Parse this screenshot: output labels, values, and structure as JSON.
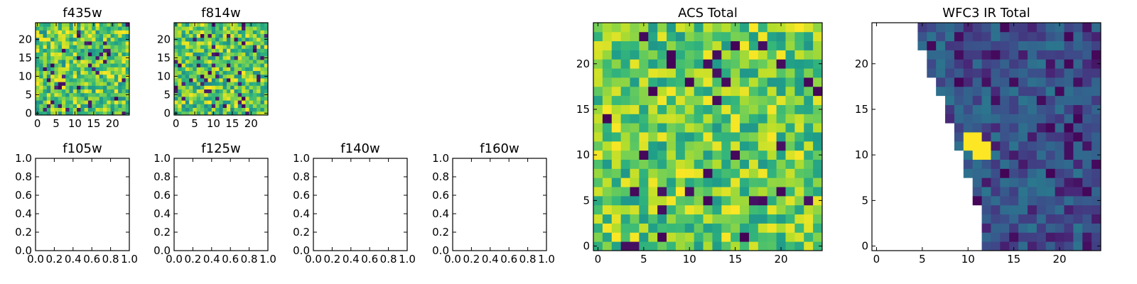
{
  "chart_data": [
    {
      "id": "f435w",
      "type": "heatmap",
      "title": "f435w",
      "xlim": [
        -0.5,
        24.5
      ],
      "ylim": [
        -0.5,
        24.5
      ],
      "xticks": [
        0,
        5,
        10,
        15,
        20
      ],
      "yticks": [
        0,
        5,
        10,
        15,
        20
      ],
      "xtick_labels": [
        "0",
        "5",
        "10",
        "15",
        "20"
      ],
      "ytick_labels": [
        "0",
        "5",
        "10",
        "15",
        "20"
      ],
      "colormap": "viridis",
      "grid": false,
      "rows": 25,
      "cols": 25,
      "fill": "random-dense",
      "seed": 11
    },
    {
      "id": "f814w",
      "type": "heatmap",
      "title": "f814w",
      "xlim": [
        -0.5,
        24.5
      ],
      "ylim": [
        -0.5,
        24.5
      ],
      "xticks": [
        0,
        5,
        10,
        15,
        20
      ],
      "yticks": [
        0,
        5,
        10,
        15,
        20
      ],
      "xtick_labels": [
        "0",
        "5",
        "10",
        "15",
        "20"
      ],
      "ytick_labels": [
        "0",
        "5",
        "10",
        "15",
        "20"
      ],
      "colormap": "viridis",
      "grid": false,
      "rows": 25,
      "cols": 25,
      "fill": "random-dense",
      "seed": 23
    },
    {
      "id": "f105w",
      "type": "heatmap",
      "title": "f105w",
      "xlim": [
        0,
        1
      ],
      "ylim": [
        0,
        1
      ],
      "xticks": [
        0,
        0.2,
        0.4,
        0.6,
        0.8,
        1.0
      ],
      "yticks": [
        0,
        0.2,
        0.4,
        0.6,
        0.8,
        1.0
      ],
      "xtick_labels": [
        "0.0",
        "0.2",
        "0.4",
        "0.6",
        "0.8",
        "1.0"
      ],
      "ytick_labels": [
        "0.0",
        "0.2",
        "0.4",
        "0.6",
        "0.8",
        "1.0"
      ],
      "empty": true
    },
    {
      "id": "f125w",
      "type": "heatmap",
      "title": "f125w",
      "xlim": [
        0,
        1
      ],
      "ylim": [
        0,
        1
      ],
      "xticks": [
        0,
        0.2,
        0.4,
        0.6,
        0.8,
        1.0
      ],
      "yticks": [
        0,
        0.2,
        0.4,
        0.6,
        0.8,
        1.0
      ],
      "xtick_labels": [
        "0.0",
        "0.2",
        "0.4",
        "0.6",
        "0.8",
        "1.0"
      ],
      "ytick_labels": [
        "0.0",
        "0.2",
        "0.4",
        "0.6",
        "0.8",
        "1.0"
      ],
      "empty": true
    },
    {
      "id": "f140w",
      "type": "heatmap",
      "title": "f140w",
      "xlim": [
        0,
        1
      ],
      "ylim": [
        0,
        1
      ],
      "xticks": [
        0,
        0.2,
        0.4,
        0.6,
        0.8,
        1.0
      ],
      "yticks": [
        0,
        0.2,
        0.4,
        0.6,
        0.8,
        1.0
      ],
      "xtick_labels": [
        "0.0",
        "0.2",
        "0.4",
        "0.6",
        "0.8",
        "1.0"
      ],
      "ytick_labels": [
        "0.0",
        "0.2",
        "0.4",
        "0.6",
        "0.8",
        "1.0"
      ],
      "empty": true
    },
    {
      "id": "f160w",
      "type": "heatmap",
      "title": "f160w",
      "xlim": [
        0,
        1
      ],
      "ylim": [
        0,
        1
      ],
      "xticks": [
        0,
        0.2,
        0.4,
        0.6,
        0.8,
        1.0
      ],
      "yticks": [
        0,
        0.2,
        0.4,
        0.6,
        0.8,
        1.0
      ],
      "xtick_labels": [
        "0.0",
        "0.2",
        "0.4",
        "0.6",
        "0.8",
        "1.0"
      ],
      "ytick_labels": [
        "0.0",
        "0.2",
        "0.4",
        "0.6",
        "0.8",
        "1.0"
      ],
      "empty": true
    },
    {
      "id": "acs-total",
      "type": "heatmap",
      "title": "ACS Total",
      "xlim": [
        -0.5,
        24.5
      ],
      "ylim": [
        -0.5,
        24.5
      ],
      "xticks": [
        0,
        5,
        10,
        15,
        20
      ],
      "yticks": [
        0,
        5,
        10,
        15,
        20
      ],
      "xtick_labels": [
        "0",
        "5",
        "10",
        "15",
        "20"
      ],
      "ytick_labels": [
        "0",
        "5",
        "10",
        "15",
        "20"
      ],
      "colormap": "viridis",
      "grid": false,
      "rows": 25,
      "cols": 25,
      "fill": "random-bright",
      "seed": 37
    },
    {
      "id": "wfc3-ir-total",
      "type": "heatmap",
      "title": "WFC3 IR Total",
      "xlim": [
        -0.5,
        24.5
      ],
      "ylim": [
        -0.5,
        24.5
      ],
      "xticks": [
        0,
        5,
        10,
        15,
        20
      ],
      "yticks": [
        0,
        5,
        10,
        15,
        20
      ],
      "xtick_labels": [
        "0",
        "5",
        "10",
        "15",
        "20"
      ],
      "ytick_labels": [
        "0",
        "5",
        "10",
        "15",
        "20"
      ],
      "colormap": "viridis",
      "grid": false,
      "rows": 25,
      "cols": 25,
      "fill": "random-dark",
      "seed": 53,
      "mask_left_edge": [
        {
          "y": 24,
          "x_start": 5
        },
        {
          "y": 23,
          "x_start": 5
        },
        {
          "y": 22,
          "x_start": 5
        },
        {
          "y": 21,
          "x_start": 6
        },
        {
          "y": 20,
          "x_start": 6
        },
        {
          "y": 19,
          "x_start": 6
        },
        {
          "y": 18,
          "x_start": 7
        },
        {
          "y": 17,
          "x_start": 7
        },
        {
          "y": 16,
          "x_start": 8
        },
        {
          "y": 15,
          "x_start": 8
        },
        {
          "y": 14,
          "x_start": 8
        },
        {
          "y": 13,
          "x_start": 9
        },
        {
          "y": 12,
          "x_start": 9
        },
        {
          "y": 11,
          "x_start": 9
        },
        {
          "y": 10,
          "x_start": 10
        },
        {
          "y": 9,
          "x_start": 10
        },
        {
          "y": 8,
          "x_start": 10
        },
        {
          "y": 7,
          "x_start": 11
        },
        {
          "y": 6,
          "x_start": 11
        },
        {
          "y": 5,
          "x_start": 11
        },
        {
          "y": 4,
          "x_start": 12
        },
        {
          "y": 3,
          "x_start": 12
        },
        {
          "y": 2,
          "x_start": 12
        },
        {
          "y": 1,
          "x_start": 12
        },
        {
          "y": 0,
          "x_start": 12
        }
      ],
      "bright_cells": [
        {
          "x": 10,
          "y": 12
        },
        {
          "x": 11,
          "y": 12
        },
        {
          "x": 10,
          "y": 11
        },
        {
          "x": 11,
          "y": 11
        },
        {
          "x": 12,
          "y": 11
        },
        {
          "x": 11,
          "y": 10
        },
        {
          "x": 12,
          "y": 10
        }
      ]
    }
  ]
}
